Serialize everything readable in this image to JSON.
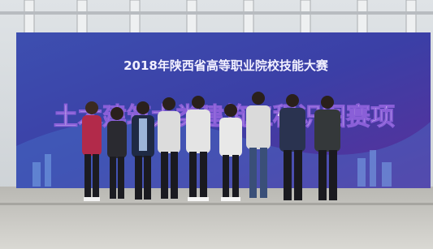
{
  "banner": {
    "title": "2018年陕西省高等职业院校技能大赛",
    "event": "土木建筑大类建筑工程识图赛项"
  }
}
